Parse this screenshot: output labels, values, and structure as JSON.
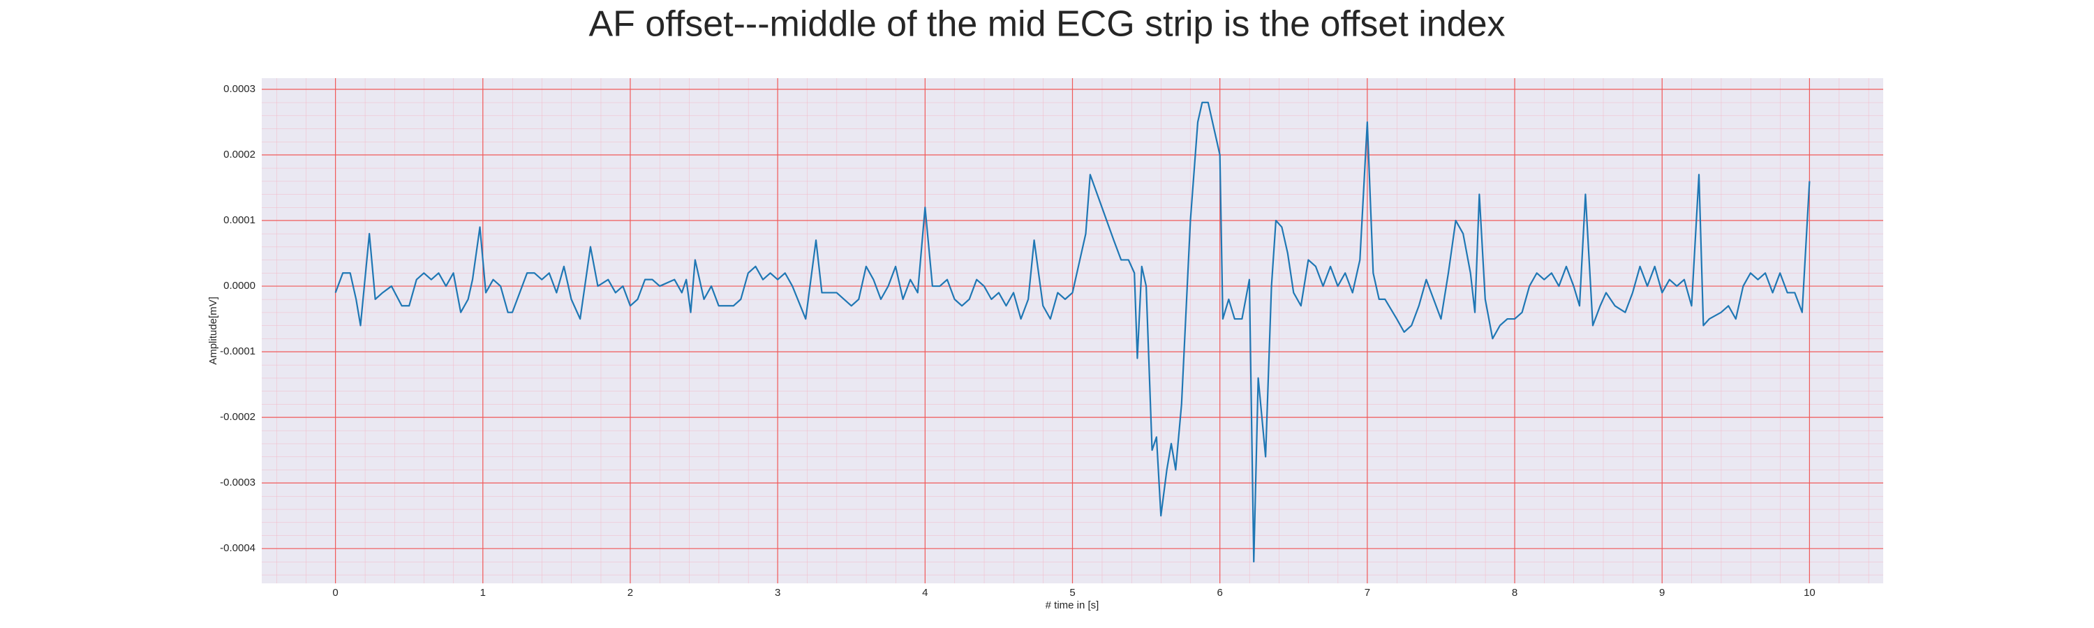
{
  "chart_data": {
    "type": "line",
    "title": "AF offset---middle of the mid ECG strip is the offset index",
    "x_label": "# time in [s]",
    "y_label": "Amplitude[mV]",
    "color": "#1f77b4",
    "background": "#eae8f2",
    "grid": true,
    "grid_color": "#f05a5a",
    "minor_grid": true,
    "minor_grid_color": "#f3b7c6",
    "xlim": [
      -0.5,
      10.5
    ],
    "ylim": [
      -0.000453,
      0.000317
    ],
    "xticks": [
      0,
      1,
      2,
      3,
      4,
      5,
      6,
      7,
      8,
      9,
      10
    ],
    "yticks": [
      {
        "value": -0.0004,
        "label": "-0.0004"
      },
      {
        "value": -0.0003,
        "label": "-0.0003"
      },
      {
        "value": -0.0002,
        "label": "-0.0002"
      },
      {
        "value": -0.0001,
        "label": "-0.0001"
      },
      {
        "value": 0,
        "label": "0.0000"
      },
      {
        "value": 0.0001,
        "label": "0.0001"
      },
      {
        "value": 0.0002,
        "label": "0.0002"
      },
      {
        "value": 0.0003,
        "label": "0.0003"
      }
    ],
    "x": [
      0,
      0.05,
      0.1,
      0.14,
      0.17,
      0.23,
      0.27,
      0.32,
      0.38,
      0.45,
      0.5,
      0.55,
      0.6,
      0.65,
      0.7,
      0.75,
      0.8,
      0.85,
      0.9,
      0.93,
      0.98,
      1.02,
      1.07,
      1.12,
      1.17,
      1.2,
      1.25,
      1.3,
      1.35,
      1.4,
      1.45,
      1.5,
      1.55,
      1.6,
      1.66,
      1.73,
      1.78,
      1.85,
      1.9,
      1.95,
      2.0,
      2.05,
      2.1,
      2.15,
      2.2,
      2.3,
      2.35,
      2.38,
      2.41,
      2.44,
      2.5,
      2.55,
      2.6,
      2.7,
      2.75,
      2.8,
      2.85,
      2.9,
      2.95,
      3.0,
      3.05,
      3.1,
      3.19,
      3.26,
      3.3,
      3.4,
      3.5,
      3.55,
      3.6,
      3.65,
      3.7,
      3.75,
      3.8,
      3.85,
      3.9,
      3.95,
      4.0,
      4.05,
      4.1,
      4.15,
      4.2,
      4.25,
      4.3,
      4.35,
      4.4,
      4.45,
      4.5,
      4.55,
      4.6,
      4.65,
      4.7,
      4.74,
      4.8,
      4.85,
      4.9,
      4.95,
      5.0,
      5.05,
      5.09,
      5.12,
      5.2,
      5.28,
      5.33,
      5.38,
      5.42,
      5.44,
      5.47,
      5.5,
      5.54,
      5.57,
      5.6,
      5.64,
      5.67,
      5.7,
      5.74,
      5.8,
      5.85,
      5.88,
      5.92,
      5.96,
      6.0,
      6.02,
      6.06,
      6.1,
      6.15,
      6.2,
      6.23,
      6.26,
      6.31,
      6.35,
      6.38,
      6.42,
      6.46,
      6.5,
      6.55,
      6.6,
      6.65,
      6.7,
      6.75,
      6.8,
      6.85,
      6.9,
      6.95,
      7.0,
      7.04,
      7.08,
      7.12,
      7.2,
      7.25,
      7.3,
      7.35,
      7.4,
      7.45,
      7.5,
      7.55,
      7.6,
      7.65,
      7.7,
      7.73,
      7.76,
      7.8,
      7.85,
      7.9,
      7.95,
      8.0,
      8.05,
      8.1,
      8.15,
      8.2,
      8.25,
      8.3,
      8.35,
      8.4,
      8.44,
      8.48,
      8.53,
      8.58,
      8.62,
      8.68,
      8.75,
      8.8,
      8.85,
      8.9,
      8.95,
      9.0,
      9.05,
      9.1,
      9.15,
      9.2,
      9.25,
      9.28,
      9.32,
      9.4,
      9.45,
      9.5,
      9.55,
      9.6,
      9.65,
      9.7,
      9.75,
      9.8,
      9.85,
      9.9,
      9.95,
      10.0
    ],
    "values": [
      -1e-05,
      2e-05,
      2e-05,
      -2e-05,
      -6e-05,
      8e-05,
      -2e-05,
      -1e-05,
      0,
      -3e-05,
      -3e-05,
      1e-05,
      2e-05,
      1e-05,
      2e-05,
      0,
      2e-05,
      -4e-05,
      -2e-05,
      1e-05,
      9e-05,
      -1e-05,
      1e-05,
      0,
      -4e-05,
      -4e-05,
      -1e-05,
      2e-05,
      2e-05,
      1e-05,
      2e-05,
      -1e-05,
      3e-05,
      -2e-05,
      -5e-05,
      6e-05,
      0,
      1e-05,
      -1e-05,
      0,
      -3e-05,
      -2e-05,
      1e-05,
      1e-05,
      0,
      1e-05,
      -1e-05,
      1e-05,
      -4e-05,
      4e-05,
      -2e-05,
      0,
      -3e-05,
      -3e-05,
      -2e-05,
      2e-05,
      3e-05,
      1e-05,
      2e-05,
      1e-05,
      2e-05,
      0,
      -5e-05,
      7e-05,
      -1e-05,
      -1e-05,
      -3e-05,
      -2e-05,
      3e-05,
      1e-05,
      -2e-05,
      0,
      3e-05,
      -2e-05,
      1e-05,
      -1e-05,
      0.00012,
      0,
      0,
      1e-05,
      -2e-05,
      -3e-05,
      -2e-05,
      1e-05,
      0,
      -2e-05,
      -1e-05,
      -3e-05,
      -1e-05,
      -5e-05,
      -2e-05,
      7e-05,
      -3e-05,
      -5e-05,
      -1e-05,
      -2e-05,
      -1e-05,
      4e-05,
      8e-05,
      0.00017,
      0.00012,
      7e-05,
      4e-05,
      4e-05,
      2e-05,
      -0.00011,
      3e-05,
      0,
      -0.00025,
      -0.00023,
      -0.00035,
      -0.00028,
      -0.00024,
      -0.00028,
      -0.00018,
      0.0001,
      0.00025,
      0.00028,
      0.00028,
      0.00024,
      0.0002,
      -5e-05,
      -2e-05,
      -5e-05,
      -5e-05,
      1e-05,
      -0.00042,
      -0.00014,
      -0.00026,
      0,
      0.0001,
      9e-05,
      5e-05,
      -1e-05,
      -3e-05,
      4e-05,
      3e-05,
      0,
      3e-05,
      0,
      2e-05,
      -1e-05,
      4e-05,
      0.00025,
      2e-05,
      -2e-05,
      -2e-05,
      -5e-05,
      -7e-05,
      -6e-05,
      -3e-05,
      1e-05,
      -2e-05,
      -5e-05,
      2e-05,
      0.0001,
      8e-05,
      2e-05,
      -4e-05,
      0.00014,
      -2e-05,
      -8e-05,
      -6e-05,
      -5e-05,
      -5e-05,
      -4e-05,
      0,
      2e-05,
      1e-05,
      2e-05,
      0,
      3e-05,
      0,
      -3e-05,
      0.00014,
      -6e-05,
      -3e-05,
      -1e-05,
      -3e-05,
      -4e-05,
      -1e-05,
      3e-05,
      0,
      3e-05,
      -1e-05,
      1e-05,
      0,
      1e-05,
      -3e-05,
      0.00017,
      -6e-05,
      -5e-05,
      -4e-05,
      -3e-05,
      -5e-05,
      0,
      2e-05,
      1e-05,
      2e-05,
      -1e-05,
      2e-05,
      -1e-05,
      -1e-05,
      -4e-05,
      0.00016
    ]
  }
}
